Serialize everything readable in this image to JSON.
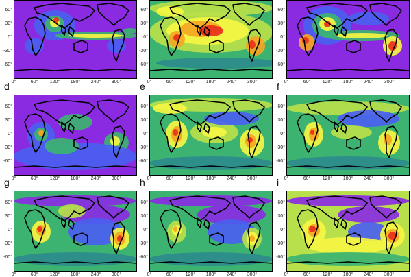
{
  "figure": {
    "panel_labels": [
      "d",
      "e",
      "f",
      "g",
      "h",
      "i"
    ],
    "ytick_labels": [
      "60°",
      "30°",
      "0°",
      "-30°",
      "-60°"
    ],
    "xtick_labels": [
      "0°",
      "60°",
      "120°",
      "180°",
      "240°",
      "300°"
    ],
    "panels": [
      {
        "id": "a",
        "label": "",
        "field": "p0"
      },
      {
        "id": "b",
        "label": "",
        "field": "p1"
      },
      {
        "id": "c",
        "label": "",
        "field": "p2"
      },
      {
        "id": "d",
        "label": "d",
        "field": "p3"
      },
      {
        "id": "e",
        "label": "e",
        "field": "p4"
      },
      {
        "id": "f",
        "label": "f",
        "field": "p5"
      },
      {
        "id": "g",
        "label": "g",
        "field": "p6"
      },
      {
        "id": "h",
        "label": "h",
        "field": "p7"
      },
      {
        "id": "i",
        "label": "i",
        "field": "p8"
      }
    ],
    "colors": {
      "violet": "#8a2be2",
      "purple": "#7b3fe4",
      "blue": "#4a5ff0",
      "teal": "#2e8b8b",
      "green": "#3cb371",
      "yellowgreen": "#b8e04a",
      "yellow": "#f5f542",
      "orange": "#f5a623",
      "red": "#e8301c",
      "coast": "#000000"
    }
  }
}
